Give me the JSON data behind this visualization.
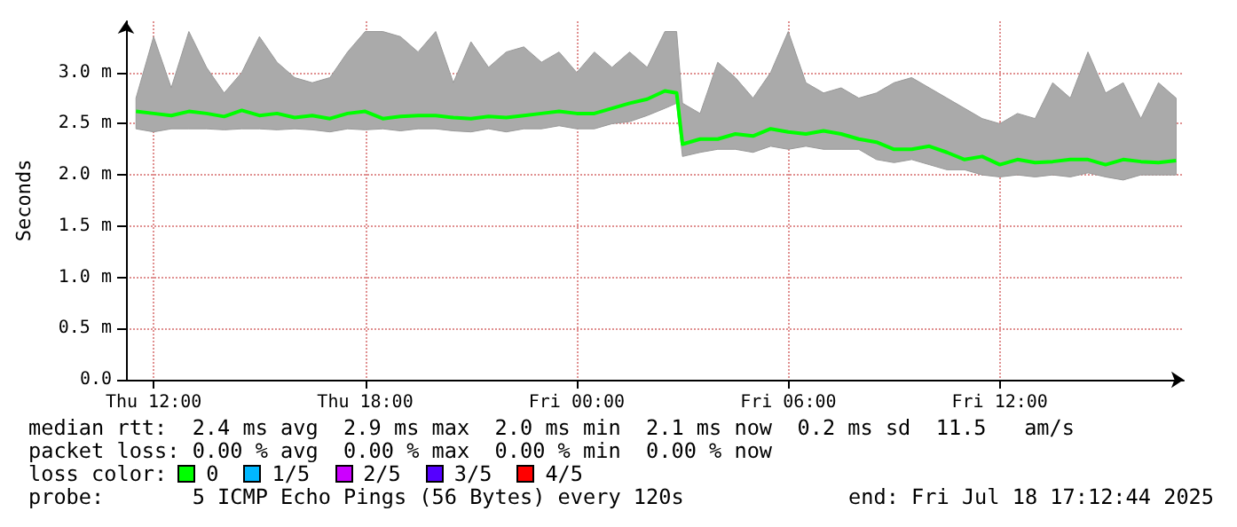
{
  "chart_data": {
    "type": "line",
    "ylabel": "Seconds",
    "xlim": [
      "2025-07-17T11:13",
      "2025-07-18T17:13"
    ],
    "xticks": [
      {
        "value": "2025-07-17T12:00",
        "label": "Thu 12:00"
      },
      {
        "value": "2025-07-17T18:00",
        "label": "Thu 18:00"
      },
      {
        "value": "2025-07-18T00:00",
        "label": "Fri 00:00"
      },
      {
        "value": "2025-07-18T06:00",
        "label": "Fri 06:00"
      },
      {
        "value": "2025-07-18T12:00",
        "label": "Fri 12:00"
      }
    ],
    "ylim": [
      0,
      3.5
    ],
    "yticks": [
      {
        "value": 0,
        "label": "0.0"
      },
      {
        "value": 0.5,
        "label": "0.5 m"
      },
      {
        "value": 1,
        "label": "1.0 m"
      },
      {
        "value": 1.5,
        "label": "1.5 m"
      },
      {
        "value": 2,
        "label": "2.0 m"
      },
      {
        "value": 2.5,
        "label": "2.5 m"
      },
      {
        "value": 3,
        "label": "3.0 m"
      }
    ],
    "grid": true,
    "marker": "none",
    "legend": "bottom",
    "legend_title": "loss color:",
    "x": [
      "2025-07-17T11:30",
      "2025-07-17T12:00",
      "2025-07-17T12:30",
      "2025-07-17T13:00",
      "2025-07-17T13:30",
      "2025-07-17T14:00",
      "2025-07-17T14:30",
      "2025-07-17T15:00",
      "2025-07-17T15:30",
      "2025-07-17T16:00",
      "2025-07-17T16:30",
      "2025-07-17T17:00",
      "2025-07-17T17:30",
      "2025-07-17T18:00",
      "2025-07-17T18:30",
      "2025-07-17T19:00",
      "2025-07-17T19:30",
      "2025-07-17T20:00",
      "2025-07-17T20:30",
      "2025-07-17T21:00",
      "2025-07-17T21:30",
      "2025-07-17T22:00",
      "2025-07-17T22:30",
      "2025-07-17T23:00",
      "2025-07-17T23:30",
      "2025-07-18T00:00",
      "2025-07-18T00:30",
      "2025-07-18T01:00",
      "2025-07-18T01:30",
      "2025-07-18T02:00",
      "2025-07-18T02:30",
      "2025-07-18T02:50",
      "2025-07-18T03:00",
      "2025-07-18T03:30",
      "2025-07-18T04:00",
      "2025-07-18T04:30",
      "2025-07-18T05:00",
      "2025-07-18T05:30",
      "2025-07-18T06:00",
      "2025-07-18T06:30",
      "2025-07-18T07:00",
      "2025-07-18T07:30",
      "2025-07-18T08:00",
      "2025-07-18T08:30",
      "2025-07-18T09:00",
      "2025-07-18T09:30",
      "2025-07-18T10:00",
      "2025-07-18T10:30",
      "2025-07-18T11:00",
      "2025-07-18T11:30",
      "2025-07-18T12:00",
      "2025-07-18T12:30",
      "2025-07-18T13:00",
      "2025-07-18T13:30",
      "2025-07-18T14:00",
      "2025-07-18T14:30",
      "2025-07-18T15:00",
      "2025-07-18T15:30",
      "2025-07-18T16:00",
      "2025-07-18T16:30",
      "2025-07-18T17:00"
    ],
    "series": [
      {
        "name": "0",
        "color": "#00ff00",
        "values": [
          2.62,
          2.6,
          2.58,
          2.62,
          2.6,
          2.57,
          2.63,
          2.58,
          2.6,
          2.56,
          2.58,
          2.55,
          2.6,
          2.62,
          2.55,
          2.57,
          2.58,
          2.58,
          2.56,
          2.55,
          2.57,
          2.56,
          2.58,
          2.6,
          2.62,
          2.6,
          2.6,
          2.65,
          2.7,
          2.74,
          2.82,
          2.8,
          2.3,
          2.35,
          2.35,
          2.4,
          2.38,
          2.45,
          2.42,
          2.4,
          2.43,
          2.4,
          2.35,
          2.32,
          2.25,
          2.25,
          2.28,
          2.22,
          2.15,
          2.18,
          2.1,
          2.15,
          2.12,
          2.13,
          2.15,
          2.15,
          2.1,
          2.15,
          2.13,
          2.12,
          2.14
        ],
        "lower": [
          2.45,
          2.42,
          2.45,
          2.45,
          2.45,
          2.44,
          2.45,
          2.45,
          2.44,
          2.45,
          2.44,
          2.42,
          2.45,
          2.44,
          2.45,
          2.43,
          2.45,
          2.45,
          2.43,
          2.42,
          2.45,
          2.42,
          2.45,
          2.45,
          2.48,
          2.45,
          2.45,
          2.5,
          2.52,
          2.58,
          2.65,
          2.7,
          2.18,
          2.22,
          2.25,
          2.25,
          2.22,
          2.28,
          2.25,
          2.28,
          2.25,
          2.25,
          2.25,
          2.15,
          2.12,
          2.15,
          2.1,
          2.05,
          2.05,
          2.0,
          1.98,
          2.0,
          1.98,
          2.0,
          1.98,
          2.02,
          1.98,
          1.95,
          2.0,
          2.0,
          2.0
        ],
        "upper": [
          2.75,
          3.35,
          2.85,
          3.4,
          3.05,
          2.8,
          3.0,
          3.35,
          3.1,
          2.95,
          2.9,
          2.95,
          3.2,
          3.4,
          3.4,
          3.35,
          3.2,
          3.4,
          2.9,
          3.3,
          3.05,
          3.2,
          3.25,
          3.1,
          3.2,
          3.0,
          3.2,
          3.05,
          3.2,
          3.05,
          3.4,
          3.4,
          2.7,
          2.6,
          3.1,
          2.95,
          2.75,
          3.0,
          3.4,
          2.9,
          2.8,
          2.85,
          2.75,
          2.8,
          2.9,
          2.95,
          2.85,
          2.75,
          2.65,
          2.55,
          2.5,
          2.6,
          2.55,
          2.9,
          2.75,
          3.2,
          2.8,
          2.9,
          2.55,
          2.9,
          2.75
        ]
      },
      {
        "name": "1/5",
        "color": "#00b8ff",
        "values": [
          null,
          null,
          null,
          null,
          null,
          null,
          null,
          null,
          null,
          null,
          null,
          null,
          null,
          null,
          null,
          null,
          null,
          null,
          null,
          null,
          null,
          null,
          null,
          null,
          null,
          null,
          null,
          null,
          null,
          null,
          null,
          null,
          null,
          null,
          null,
          null,
          null,
          null,
          null,
          null,
          null,
          null,
          null,
          null,
          null,
          null,
          null,
          null,
          null,
          null,
          null,
          null,
          null,
          null,
          null,
          null,
          null,
          null,
          null,
          null,
          null
        ]
      },
      {
        "name": "2/5",
        "color": "#cc00ff",
        "values": [
          null,
          null,
          null,
          null,
          null,
          null,
          null,
          null,
          null,
          null,
          null,
          null,
          null,
          null,
          null,
          null,
          null,
          null,
          null,
          null,
          null,
          null,
          null,
          null,
          null,
          null,
          null,
          null,
          null,
          null,
          null,
          null,
          null,
          null,
          null,
          null,
          null,
          null,
          null,
          null,
          null,
          null,
          null,
          null,
          null,
          null,
          null,
          null,
          null,
          null,
          null,
          null,
          null,
          null,
          null,
          null,
          null,
          null,
          null,
          null,
          null
        ]
      },
      {
        "name": "3/5",
        "color": "#5500ff",
        "values": [
          null,
          null,
          null,
          null,
          null,
          null,
          null,
          null,
          null,
          null,
          null,
          null,
          null,
          null,
          null,
          null,
          null,
          null,
          null,
          null,
          null,
          null,
          null,
          null,
          null,
          null,
          null,
          null,
          null,
          null,
          null,
          null,
          null,
          null,
          null,
          null,
          null,
          null,
          null,
          null,
          null,
          null,
          null,
          null,
          null,
          null,
          null,
          null,
          null,
          null,
          null,
          null,
          null,
          null,
          null,
          null,
          null,
          null,
          null,
          null,
          null
        ]
      },
      {
        "name": "4/5",
        "color": "#ff0000",
        "values": [
          null,
          null,
          null,
          null,
          null,
          null,
          null,
          null,
          null,
          null,
          null,
          null,
          null,
          null,
          null,
          null,
          null,
          null,
          null,
          null,
          null,
          null,
          null,
          null,
          null,
          null,
          null,
          null,
          null,
          null,
          null,
          null,
          null,
          null,
          null,
          null,
          null,
          null,
          null,
          null,
          null,
          null,
          null,
          null,
          null,
          null,
          null,
          null,
          null,
          null,
          null,
          null,
          null,
          null,
          null,
          null,
          null,
          null,
          null,
          null,
          null
        ]
      }
    ],
    "annotations": [
      "median rtt:  2.4 ms avg  2.9 ms max  2.0 ms min  2.1 ms now  0.2 ms sd  11.5   am/s",
      "packet loss: 0.00 % avg  0.00 % max  0.00 % min  0.00 % now",
      "probe:       5 ICMP Echo Pings (56 Bytes) every 120s",
      "end: Fri Jul 18 17:12:44 2025"
    ]
  }
}
